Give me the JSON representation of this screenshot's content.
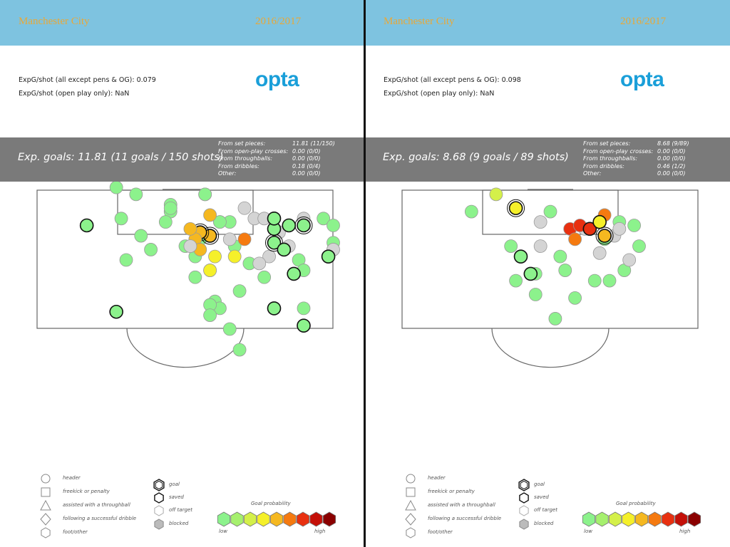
{
  "panels": [
    {
      "team": "Manchester City",
      "season": "2016/2017",
      "expg_all": "ExpG/shot (all except pens & OG): 0.079",
      "expg_open": "ExpG/shot (open play only): NaN",
      "logo": "opta",
      "exp_goals": "Exp. goals: 11.81 (11 goals / 150 shots)",
      "breakdown": [
        {
          "label": "From set pieces:",
          "value": "11.81 (11/150)"
        },
        {
          "label": "From open-play crosses:",
          "value": "0.00 (0/0)"
        },
        {
          "label": "From throughballs:",
          "value": "0.00 (0/0)"
        },
        {
          "label": "From dribbles:",
          "value": "0.18 (0/4)"
        },
        {
          "label": "Other:",
          "value": "0.00 (0/0)"
        }
      ]
    },
    {
      "team": "Manchester City",
      "season": "2016/2017",
      "expg_all": "ExpG/shot (all except pens & OG): 0.098",
      "expg_open": "ExpG/shot (open play only): NaN",
      "logo": "opta",
      "exp_goals": "Exp. goals: 8.68 (9 goals / 89 shots)",
      "breakdown": [
        {
          "label": "From set pieces:",
          "value": "8.68 (9/89)"
        },
        {
          "label": "From open-play crosses:",
          "value": "0.00 (0/0)"
        },
        {
          "label": "From throughballs:",
          "value": "0.00 (0/0)"
        },
        {
          "label": "From dribbles:",
          "value": "0.46 (1/2)"
        },
        {
          "label": "Other:",
          "value": "0.00 (0/0)"
        }
      ]
    }
  ],
  "legend": {
    "shapes": [
      "header",
      "freekick or penalty",
      "assisted with a throughball",
      "following a successful dribble",
      "foot/other"
    ],
    "outcomes": [
      "goal",
      "saved",
      "off target",
      "blocked"
    ],
    "prob_title": "Goal probability",
    "prob_low": "low",
    "prob_high": "high",
    "prob_colors": [
      "#8cf28c",
      "#a6f06e",
      "#d4f04a",
      "#f5f02a",
      "#f5b820",
      "#f57a10",
      "#e83010",
      "#c41008",
      "#8a0000"
    ]
  },
  "chart_data": [
    {
      "type": "scatter",
      "title": "Manchester City 2016/2017",
      "pitch_length_m": 52.5,
      "pitch_width_m": 68,
      "shots": [
        {
          "x": 8,
          "y": -42,
          "shape": "sq",
          "p": 3,
          "o": "off"
        },
        {
          "x": -10,
          "y": -19,
          "shape": "ci",
          "p": 1,
          "o": "off"
        },
        {
          "x": -9,
          "y": -7,
          "shape": "ci",
          "p": 1,
          "o": "off"
        },
        {
          "x": -12,
          "y": 0,
          "shape": "ci",
          "p": 1,
          "o": "off"
        },
        {
          "x": 0,
          "y": -4,
          "shape": "ci",
          "p": 1,
          "o": "off"
        },
        {
          "x": 2,
          "y": 5,
          "shape": "ci",
          "p": 1,
          "o": "off"
        },
        {
          "x": -3,
          "y": -14,
          "shape": "ci",
          "p": 1,
          "o": "off"
        },
        {
          "x": -14,
          "y": -21,
          "shape": "ci",
          "p": 1,
          "o": "off"
        },
        {
          "x": -15,
          "y": -30,
          "shape": "ci",
          "p": 1,
          "o": "off"
        },
        {
          "x": -9,
          "y": -25,
          "shape": "ci",
          "p": 1,
          "o": "off"
        },
        {
          "x": -13,
          "y": -12,
          "shape": "ci",
          "p": 1,
          "o": "off"
        },
        {
          "x": -7,
          "y": -3,
          "shape": "ci",
          "p": 1,
          "o": "off"
        },
        {
          "x": -4,
          "y": -11,
          "shape": "ci",
          "p": 1,
          "o": "off"
        },
        {
          "x": 4,
          "y": -19,
          "shape": "ci",
          "p": 1,
          "o": "off"
        },
        {
          "x": 7,
          "y": -11,
          "shape": "ci",
          "p": 1,
          "o": "off"
        },
        {
          "x": 10,
          "y": -4,
          "shape": "ci",
          "p": 1,
          "o": "off"
        },
        {
          "x": 13,
          "y": 1,
          "shape": "ci",
          "p": 1,
          "o": "off"
        },
        {
          "x": 11,
          "y": 9,
          "shape": "ci",
          "p": 1,
          "o": "off"
        },
        {
          "x": 16,
          "y": 5,
          "shape": "ci",
          "p": 1,
          "o": "off"
        },
        {
          "x": 6,
          "y": 12,
          "shape": "ci",
          "p": 1,
          "o": "off"
        },
        {
          "x": 9,
          "y": 20,
          "shape": "ci",
          "p": 1,
          "o": "off"
        },
        {
          "x": 11,
          "y": 26,
          "shape": "ci",
          "p": 1,
          "o": "off"
        },
        {
          "x": 7,
          "y": 14,
          "shape": "ci",
          "p": 1,
          "o": "off"
        },
        {
          "x": 5,
          "y": 3,
          "shape": "ci",
          "p": 1,
          "o": "off"
        },
        {
          "x": 3,
          "y": -6,
          "shape": "ci",
          "p": 1,
          "o": "off"
        },
        {
          "x": 5,
          "y": 13,
          "shape": "ci",
          "p": 1,
          "o": "off"
        },
        {
          "x": 5,
          "y": 16,
          "shape": "ci",
          "p": 1,
          "o": "off"
        },
        {
          "x": -3,
          "y": -16,
          "shape": "ci",
          "p": 1,
          "o": "off"
        },
        {
          "x": 3,
          "y": -8,
          "shape": "ci",
          "p": 1,
          "o": "off"
        },
        {
          "x": 9,
          "y": -11,
          "shape": "ci",
          "p": 1,
          "o": "off"
        },
        {
          "x": 23,
          "y": 0,
          "shape": "ci",
          "p": 1,
          "o": "off"
        },
        {
          "x": 24,
          "y": 14,
          "shape": "ci",
          "p": 1,
          "o": "off"
        },
        {
          "x": 28,
          "y": -12,
          "shape": "ci",
          "p": 1,
          "o": "off"
        },
        {
          "x": 30,
          "y": -10,
          "shape": "ci",
          "p": 1,
          "o": "off"
        },
        {
          "x": 30,
          "y": -5,
          "shape": "ci",
          "p": 1,
          "o": "off"
        },
        {
          "x": 24,
          "y": 3,
          "shape": "ci",
          "p": 1,
          "o": "off"
        },
        {
          "x": 2,
          "y": -1,
          "shape": "ci",
          "p": 1,
          "o": "off"
        },
        {
          "x": 7,
          "y": -11,
          "shape": "ci",
          "p": 1,
          "o": "off"
        },
        {
          "x": 4,
          "y": -19,
          "shape": "ci",
          "p": 1,
          "o": "off"
        },
        {
          "x": -3,
          "y": -15,
          "shape": "ci",
          "p": 1,
          "o": "off"
        },
        {
          "x": 6,
          "y": -1,
          "shape": "ci",
          "p": 4,
          "o": "off"
        },
        {
          "x": 5,
          "y": -7,
          "shape": "ci",
          "p": 5,
          "o": "goal"
        },
        {
          "x": 3,
          "y": -8,
          "shape": "ci",
          "p": 5,
          "o": "goal"
        },
        {
          "x": 2,
          "y": -6,
          "shape": "ci",
          "p": 5,
          "o": "off"
        },
        {
          "x": 1,
          "y": -9,
          "shape": "ci",
          "p": 5,
          "o": "off"
        },
        {
          "x": 5,
          "y": -13,
          "shape": "ci",
          "p": 5,
          "o": "off"
        },
        {
          "x": 5,
          "y": 3,
          "shape": "ci",
          "p": 4,
          "o": "off"
        },
        {
          "x": 3,
          "y": -3,
          "shape": "ci",
          "p": 5,
          "o": "off"
        },
        {
          "x": 10,
          "y": -1,
          "shape": "ci",
          "p": 4,
          "o": "off"
        },
        {
          "x": 12,
          "y": -6,
          "shape": "ci",
          "p": 6,
          "o": "off"
        },
        {
          "x": 1,
          "y": -4,
          "shape": "ci",
          "p": 2,
          "o": "blocked"
        },
        {
          "x": 9,
          "y": -6,
          "shape": "ci",
          "p": 2,
          "o": "blocked"
        },
        {
          "x": 12,
          "y": -15,
          "shape": "ci",
          "p": 1,
          "o": "blocked"
        },
        {
          "x": 14,
          "y": -12,
          "shape": "ci",
          "p": 1,
          "o": "blocked"
        },
        {
          "x": 16,
          "y": -12,
          "shape": "ci",
          "p": 1,
          "o": "blocked"
        },
        {
          "x": 19,
          "y": -8,
          "shape": "ci",
          "p": 1,
          "o": "blocked"
        },
        {
          "x": 17,
          "y": -1,
          "shape": "ci",
          "p": 1,
          "o": "blocked"
        },
        {
          "x": 21,
          "y": -4,
          "shape": "ci",
          "p": 1,
          "o": "blocked"
        },
        {
          "x": 24,
          "y": -12,
          "shape": "ci",
          "p": 1,
          "o": "blocked"
        },
        {
          "x": 30,
          "y": -3,
          "shape": "ci",
          "p": 1,
          "o": "blocked"
        },
        {
          "x": 15,
          "y": 1,
          "shape": "ci",
          "p": 1,
          "o": "blocked"
        },
        {
          "x": 18,
          "y": -5,
          "shape": "ci",
          "p": 1,
          "o": "goal"
        },
        {
          "x": 21,
          "y": -10,
          "shape": "ci",
          "p": 1,
          "o": "saved"
        },
        {
          "x": 18,
          "y": -9,
          "shape": "ci",
          "p": 1,
          "o": "saved"
        },
        {
          "x": 24,
          "y": -10,
          "shape": "ci",
          "p": 1,
          "o": "goal"
        },
        {
          "x": 20,
          "y": -3,
          "shape": "ci",
          "p": 1,
          "o": "saved"
        },
        {
          "x": 18,
          "y": -12,
          "shape": "ci",
          "p": 1,
          "o": "saved"
        },
        {
          "x": 29,
          "y": -1,
          "shape": "ci",
          "p": 1,
          "o": "saved"
        },
        {
          "x": 22,
          "y": 4,
          "shape": "ci",
          "p": 1,
          "o": "saved"
        },
        {
          "x": -20,
          "y": -10,
          "shape": "ci",
          "p": 1,
          "o": "saved"
        },
        {
          "x": 18,
          "y": 14,
          "shape": "ci",
          "p": 1,
          "o": "saved"
        },
        {
          "x": 24,
          "y": 19,
          "shape": "ci",
          "p": 1,
          "o": "saved"
        },
        {
          "x": -14,
          "y": 15,
          "shape": "ci",
          "p": 1,
          "o": "saved"
        }
      ]
    },
    {
      "type": "scatter",
      "title": "Manchester City 2016/2017",
      "pitch_length_m": 52.5,
      "pitch_width_m": 68,
      "shots": [
        {
          "x": -8,
          "y": -4,
          "shape": "ci",
          "p": 1,
          "o": "off"
        },
        {
          "x": 2,
          "y": -1,
          "shape": "ci",
          "p": 1,
          "o": "off"
        },
        {
          "x": -16,
          "y": -14,
          "shape": "ci",
          "p": 1,
          "o": "off"
        },
        {
          "x": 0,
          "y": -14,
          "shape": "ci",
          "p": 1,
          "o": "off"
        },
        {
          "x": 11,
          "y": -6,
          "shape": "ci",
          "p": 1,
          "o": "off"
        },
        {
          "x": 14,
          "y": -11,
          "shape": "ci",
          "p": 1,
          "o": "off"
        },
        {
          "x": 17,
          "y": -10,
          "shape": "ci",
          "p": 1,
          "o": "off"
        },
        {
          "x": 18,
          "y": -4,
          "shape": "ci",
          "p": 1,
          "o": "off"
        },
        {
          "x": 15,
          "y": 3,
          "shape": "ci",
          "p": 1,
          "o": "off"
        },
        {
          "x": 9,
          "y": 6,
          "shape": "ci",
          "p": 1,
          "o": "off"
        },
        {
          "x": 5,
          "y": 11,
          "shape": "ci",
          "p": 1,
          "o": "off"
        },
        {
          "x": 1,
          "y": 17,
          "shape": "ci",
          "p": 1,
          "o": "off"
        },
        {
          "x": -7,
          "y": 6,
          "shape": "ci",
          "p": 1,
          "o": "off"
        },
        {
          "x": -3,
          "y": 4,
          "shape": "ci",
          "p": 1,
          "o": "off"
        },
        {
          "x": 12,
          "y": 6,
          "shape": "ci",
          "p": 1,
          "o": "off"
        },
        {
          "x": -3,
          "y": 10,
          "shape": "ci",
          "p": 1,
          "o": "off"
        },
        {
          "x": 7,
          "y": -9,
          "shape": "ci",
          "p": 1,
          "o": "blocked"
        },
        {
          "x": 13,
          "y": -7,
          "shape": "ci",
          "p": 1,
          "o": "blocked"
        },
        {
          "x": 10,
          "y": -2,
          "shape": "ci",
          "p": 1,
          "o": "blocked"
        },
        {
          "x": 16,
          "y": 0,
          "shape": "ci",
          "p": 1,
          "o": "blocked"
        },
        {
          "x": -2,
          "y": -11,
          "shape": "ci",
          "p": 1,
          "o": "blocked"
        },
        {
          "x": -11,
          "y": -19,
          "shape": "ci",
          "p": 3,
          "o": "off"
        },
        {
          "x": -7,
          "y": -15,
          "shape": "ci",
          "p": 4,
          "o": "goal"
        },
        {
          "x": 4,
          "y": -9,
          "shape": "ci",
          "p": 7,
          "o": "off"
        },
        {
          "x": 6,
          "y": -10,
          "shape": "ci",
          "p": 7,
          "o": "off"
        },
        {
          "x": 8,
          "y": -9,
          "shape": "ci",
          "p": 7,
          "o": "saved"
        },
        {
          "x": 5,
          "y": -6,
          "shape": "ci",
          "p": 6,
          "o": "off"
        },
        {
          "x": 11,
          "y": -13,
          "shape": "ci",
          "p": 6,
          "o": "off"
        },
        {
          "x": 10,
          "y": -11,
          "shape": "ci",
          "p": 4,
          "o": "saved"
        },
        {
          "x": 11,
          "y": -7,
          "shape": "ci",
          "p": 5,
          "o": "goal"
        },
        {
          "x": 14,
          "y": -9,
          "shape": "ci",
          "p": 2,
          "o": "blocked"
        },
        {
          "x": -6,
          "y": -1,
          "shape": "ci",
          "p": 1,
          "o": "saved"
        },
        {
          "x": -4,
          "y": 4,
          "shape": "ci",
          "p": 1,
          "o": "saved"
        },
        {
          "x": -2,
          "y": -4,
          "shape": "ci",
          "p": 1,
          "o": "blocked"
        },
        {
          "x": 3,
          "y": 3,
          "shape": "ci",
          "p": 1,
          "o": "off"
        }
      ]
    }
  ]
}
